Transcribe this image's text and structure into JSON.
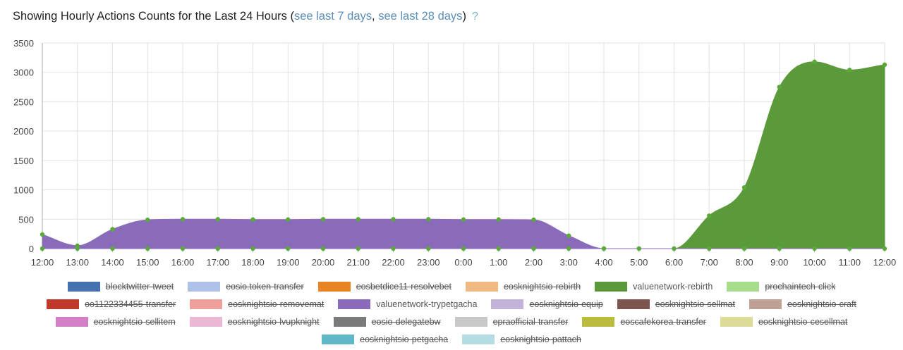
{
  "header": {
    "title_prefix": "Showing Hourly Actions Counts for the Last 24 Hours (",
    "link_7_days": "see last 7 days",
    "separator": ", ",
    "link_28_days": "see last 28 days",
    "title_suffix": ")",
    "help_symbol": "?"
  },
  "chart_data": {
    "type": "area",
    "title": "Showing Hourly Actions Counts for the Last 24 Hours",
    "x": [
      "12:00",
      "13:00",
      "14:00",
      "15:00",
      "16:00",
      "17:00",
      "18:00",
      "19:00",
      "20:00",
      "21:00",
      "22:00",
      "23:00",
      "0:00",
      "1:00",
      "2:00",
      "3:00",
      "4:00",
      "5:00",
      "6:00",
      "7:00",
      "8:00",
      "9:00",
      "10:00",
      "11:00",
      "12:00"
    ],
    "ylim": [
      0,
      3500
    ],
    "yticks": [
      0,
      500,
      1000,
      1500,
      2000,
      2500,
      3000,
      3500
    ],
    "grid": true,
    "legend_position": "bottom",
    "series": [
      {
        "name": "valuenetwork-rebirth",
        "color": "#5a9a3a",
        "visible": true,
        "values": [
          0,
          0,
          0,
          0,
          0,
          0,
          0,
          0,
          0,
          0,
          0,
          0,
          0,
          0,
          0,
          0,
          0,
          0,
          0,
          560,
          1040,
          2750,
          3180,
          3040,
          3130
        ]
      },
      {
        "name": "valuenetwork-trypetgacha",
        "color": "#8a6bba",
        "visible": true,
        "values": [
          240,
          50,
          330,
          490,
          500,
          500,
          495,
          495,
          500,
          500,
          500,
          500,
          495,
          495,
          490,
          220,
          0,
          0,
          0,
          0,
          0,
          0,
          0,
          0,
          0
        ]
      }
    ],
    "legend": [
      [
        {
          "name": "blocktwitter-tweet",
          "color": "#4472b0",
          "visible": false
        },
        {
          "name": "eosio.token-transfer",
          "color": "#aec1e8",
          "visible": false
        },
        {
          "name": "eosbetdice11-resolvebet",
          "color": "#e88326",
          "visible": false
        },
        {
          "name": "eosknightsio-rebirth",
          "color": "#f0bb82",
          "visible": false
        },
        {
          "name": "valuenetwork-rebirth",
          "color": "#5a9a3a",
          "visible": true
        },
        {
          "name": "prochaintech-click",
          "color": "#a6dc8c",
          "visible": false
        }
      ],
      [
        {
          "name": "oo1122334455-transfer",
          "color": "#c0392b",
          "visible": false
        },
        {
          "name": "eosknightsio-removemat",
          "color": "#eda09b",
          "visible": false
        },
        {
          "name": "valuenetwork-trypetgacha",
          "color": "#8a6bba",
          "visible": true
        },
        {
          "name": "eosknightsio-equip",
          "color": "#c4b3d8",
          "visible": false
        },
        {
          "name": "eosknightsio-sellmat",
          "color": "#7d5550",
          "visible": false
        },
        {
          "name": "eosknightsio-craft",
          "color": "#bfa296",
          "visible": false
        }
      ],
      [
        {
          "name": "eosknightsio-sellitem",
          "color": "#d27fc6",
          "visible": false
        },
        {
          "name": "eosknightsio-lvupknight",
          "color": "#ecb7d2",
          "visible": false
        },
        {
          "name": "eosio-delegatebw",
          "color": "#7a7a7a",
          "visible": false
        },
        {
          "name": "epraofficial-transfer",
          "color": "#c8c8c8",
          "visible": false
        },
        {
          "name": "eoscafekorea-transfer",
          "color": "#b9bc3c",
          "visible": false
        },
        {
          "name": "eosknightsio-cesellmat",
          "color": "#dcdc96",
          "visible": false
        }
      ],
      [
        {
          "name": "eosknightsio-petgacha",
          "color": "#5fb7c8",
          "visible": false
        },
        {
          "name": "eosknightsio-pattach",
          "color": "#b4dce2",
          "visible": false
        }
      ]
    ]
  }
}
